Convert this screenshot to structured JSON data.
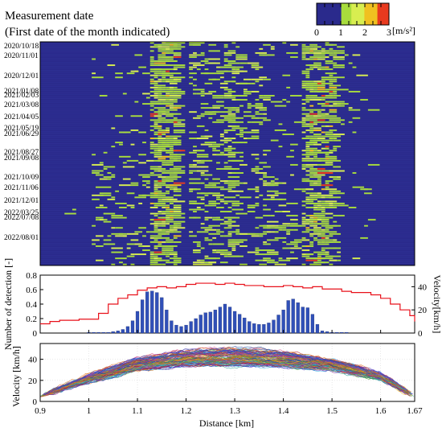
{
  "header": {
    "title_line1": "Measurement date",
    "title_line2": "(First date of the month indicated)"
  },
  "colorbar": {
    "ticks": [
      "0",
      "1",
      "2",
      "3"
    ],
    "unit": "[m/s²]",
    "colors": [
      "#2a2a8c",
      "#2b2f92",
      "#a8dc3c",
      "#d8ee50",
      "#f0c020",
      "#e83a1e"
    ]
  },
  "colors": {
    "background": "#2a2a8c",
    "bar": "#3050b8",
    "velocity_line": "#e8101a"
  },
  "chart_data": [
    {
      "type": "heatmap",
      "title": "",
      "xlabel": "",
      "ylabel": "Measurement date",
      "xlim": [
        0.9,
        1.67
      ],
      "colorbar_range": [
        0,
        3
      ],
      "colorbar_unit": "m/s²",
      "dates": [
        "2020/10/18",
        "2020/11/01",
        "2020/12/01",
        "2021/01/08",
        "2021/02/03",
        "2021/03/08",
        "2021/04/05",
        "2021/05/19",
        "2021/06/29",
        "2021/08/27",
        "2021/09/08",
        "2021/10/09",
        "2021/11/06",
        "2021/12/01",
        "2022/03/25",
        "2022/07/08",
        "2022/08/01"
      ],
      "hot_bands_km": [
        [
          1.12,
          1.17
        ],
        [
          1.2,
          1.35
        ],
        [
          1.43,
          1.51
        ]
      ]
    },
    {
      "type": "bar",
      "xlabel": "",
      "ylabel": "Number of detection [-]",
      "y2label": "Velocity[km/h]",
      "ylim": [
        0,
        0.8
      ],
      "y2lim": [
        0,
        50
      ],
      "yticks": [
        "0",
        "0.2",
        "0.4",
        "0.6",
        "0.8"
      ],
      "y2ticks": [
        "0",
        "20",
        "40"
      ],
      "bar_x": [
        1.0,
        1.01,
        1.02,
        1.03,
        1.04,
        1.05,
        1.06,
        1.07,
        1.08,
        1.09,
        1.1,
        1.11,
        1.12,
        1.13,
        1.14,
        1.15,
        1.16,
        1.17,
        1.18,
        1.19,
        1.2,
        1.21,
        1.22,
        1.23,
        1.24,
        1.25,
        1.26,
        1.27,
        1.28,
        1.29,
        1.3,
        1.31,
        1.32,
        1.33,
        1.34,
        1.35,
        1.36,
        1.37,
        1.38,
        1.39,
        1.4,
        1.41,
        1.42,
        1.43,
        1.44,
        1.45,
        1.46,
        1.47,
        1.48,
        1.49,
        1.5,
        1.51,
        1.52,
        1.53
      ],
      "bar_values": [
        0.01,
        0.01,
        0.01,
        0.01,
        0.01,
        0.02,
        0.03,
        0.05,
        0.09,
        0.17,
        0.3,
        0.46,
        0.57,
        0.58,
        0.56,
        0.49,
        0.32,
        0.17,
        0.11,
        0.09,
        0.11,
        0.16,
        0.2,
        0.25,
        0.28,
        0.29,
        0.32,
        0.36,
        0.4,
        0.36,
        0.3,
        0.26,
        0.21,
        0.16,
        0.13,
        0.12,
        0.12,
        0.14,
        0.18,
        0.25,
        0.32,
        0.45,
        0.47,
        0.42,
        0.36,
        0.35,
        0.26,
        0.12,
        0.03,
        0.02,
        0.01,
        0.01,
        0.01,
        0.01
      ],
      "velocity_x": [
        0.9,
        0.92,
        0.94,
        0.96,
        0.98,
        1.0,
        1.02,
        1.04,
        1.06,
        1.08,
        1.1,
        1.12,
        1.14,
        1.16,
        1.18,
        1.2,
        1.22,
        1.24,
        1.26,
        1.28,
        1.3,
        1.32,
        1.34,
        1.36,
        1.38,
        1.4,
        1.42,
        1.44,
        1.46,
        1.48,
        1.5,
        1.52,
        1.54,
        1.56,
        1.58,
        1.6,
        1.62,
        1.64,
        1.66,
        1.67
      ],
      "velocity_values": [
        8,
        10,
        11,
        11,
        12,
        12,
        17,
        25,
        30,
        33,
        37,
        39,
        40,
        39,
        40,
        42,
        43,
        43,
        42,
        43,
        42,
        41,
        41,
        40,
        40,
        41,
        40,
        39,
        40,
        38,
        38,
        36,
        35,
        35,
        33,
        30,
        25,
        20,
        15,
        10
      ]
    },
    {
      "type": "line",
      "xlabel": "Distance [km]",
      "ylabel": "Velocity [km/h]",
      "xlim": [
        0.9,
        1.67
      ],
      "ylim": [
        0,
        55
      ],
      "xticks": [
        "0.9",
        "1",
        "1.1",
        "1.2",
        "1.3",
        "1.4",
        "1.5",
        "1.6",
        "1.67"
      ],
      "yticks": [
        "0",
        "20",
        "40"
      ],
      "mean_profile_x": [
        0.9,
        1.0,
        1.1,
        1.2,
        1.3,
        1.4,
        1.5,
        1.6,
        1.67
      ],
      "mean_profile_y": [
        5,
        22,
        35,
        41,
        42,
        40,
        35,
        24,
        5
      ]
    }
  ]
}
